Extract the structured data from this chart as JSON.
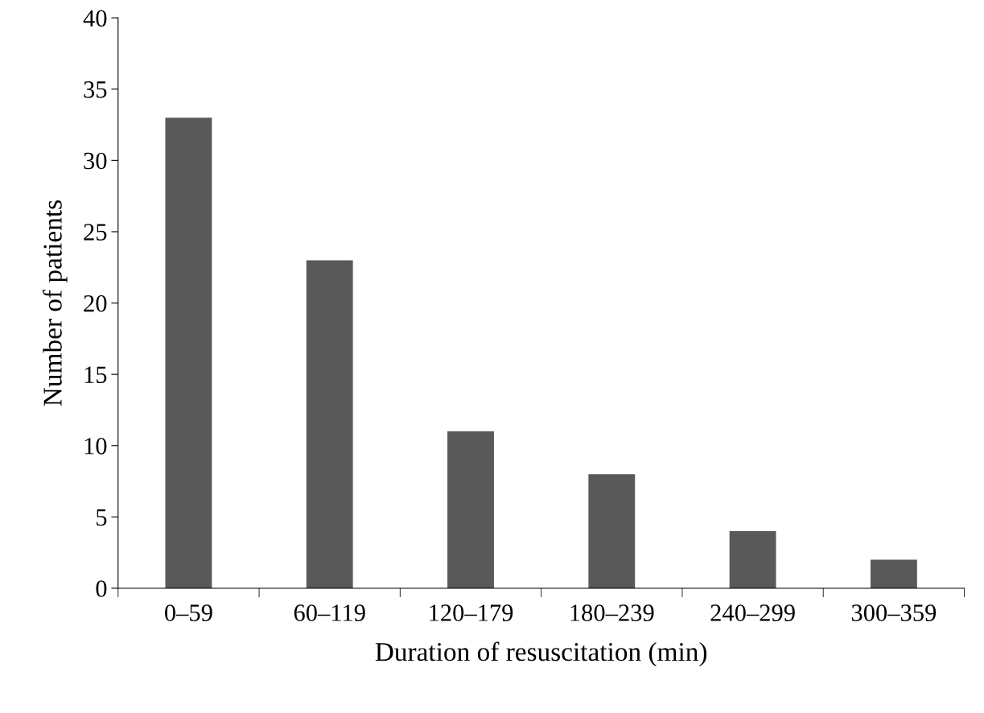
{
  "chart_data": {
    "type": "bar",
    "xlabel": "Duration of resuscitation (min)",
    "ylabel": "Number of patients",
    "categories": [
      "0–59",
      "60–119",
      "120–179",
      "180–239",
      "240–299",
      "300–359"
    ],
    "values": [
      33,
      23,
      11,
      8,
      4,
      2
    ],
    "color": "#595959",
    "ylim": [
      0,
      40
    ],
    "yticks": [
      0,
      5,
      10,
      15,
      20,
      25,
      30,
      35,
      40
    ],
    "grid": false
  }
}
